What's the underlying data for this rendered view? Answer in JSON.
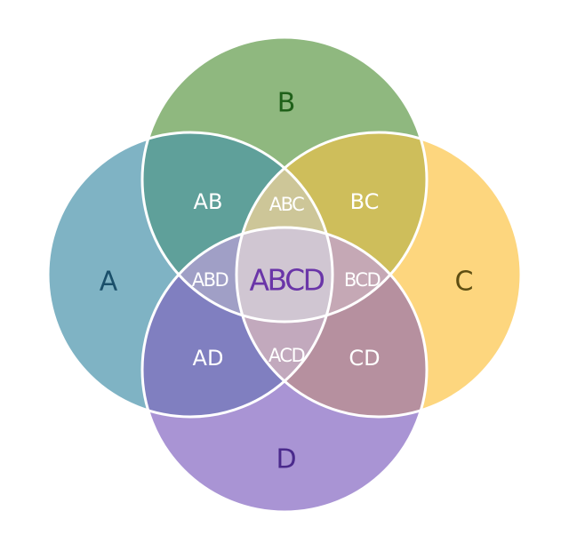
{
  "colors": {
    "A": "#7fb3c4",
    "B": "#8fb87f",
    "C": "#fdd67e",
    "D": "#a994d4",
    "AB": "#5fa09a",
    "BC": "#cebe5b",
    "AD": "#807fc0",
    "CD": "#b6909f",
    "ABC": "#cdc698",
    "ABD": "#a09fc6",
    "BCD": "#c5a8b5",
    "ACD": "#c2a9bd",
    "ABCD": "#d0c6d2",
    "text_A": "#1a4f6a",
    "text_B": "#1f6019",
    "text_C": "#5e4e12",
    "text_D": "#4a2a8c",
    "text_inner": "#ffffff",
    "text_center": "#6a35a8"
  },
  "labels": {
    "A": "A",
    "B": "B",
    "C": "C",
    "D": "D",
    "AB": "AB",
    "BC": "BC",
    "AD": "AD",
    "CD": "CD",
    "ABC": "ABC",
    "ABD": "ABD",
    "BCD": "BCD",
    "ACD": "ACD",
    "ABCD": "ABCD"
  }
}
